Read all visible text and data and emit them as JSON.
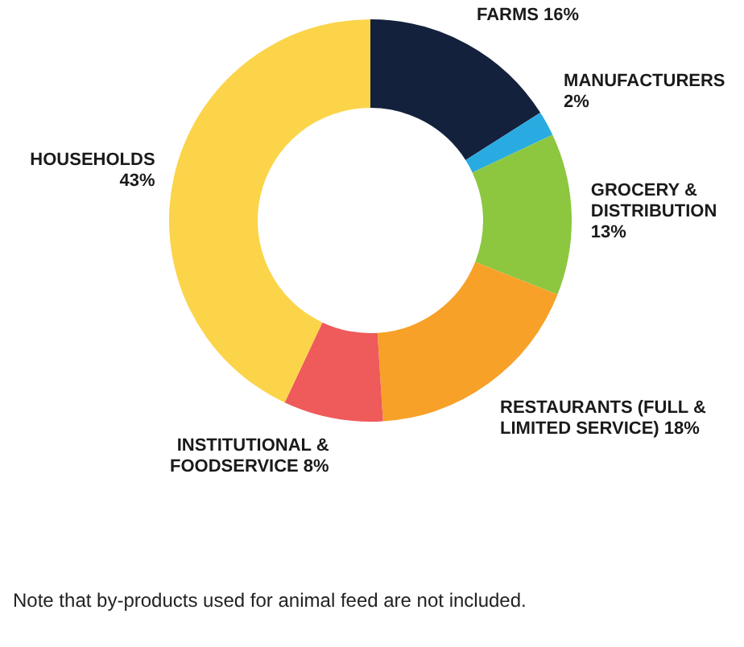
{
  "chart_data": {
    "type": "donut",
    "categories": [
      "FARMS",
      "MANUFACTURERS",
      "GROCERY & DISTRIBUTION",
      "RESTAURANTS (FULL & LIMITED SERVICE)",
      "INSTITUTIONAL & FOODSERVICE",
      "HOUSEHOLDS"
    ],
    "values": [
      16,
      2,
      13,
      18,
      8,
      43
    ],
    "value_labels": [
      "16%",
      "2%",
      "13%",
      "18%",
      "8%",
      "43%"
    ],
    "colors": [
      "#14213d",
      "#29abe2",
      "#8dc63f",
      "#f7a128",
      "#ef5a5a",
      "#fbd44a"
    ],
    "legend": false,
    "annotations": [
      "Note that by-products used for animal feed are not included."
    ]
  }
}
